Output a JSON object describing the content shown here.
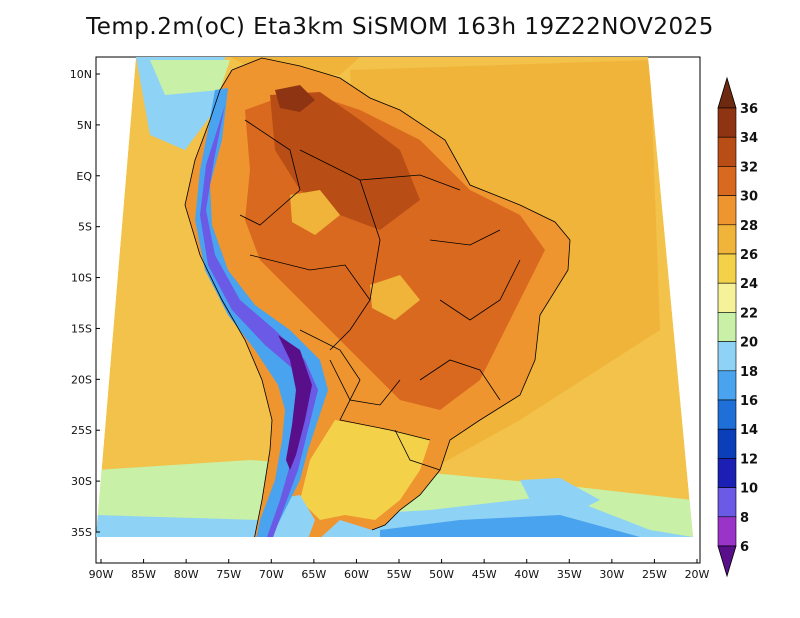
{
  "title": "Temp.2m(oC) Eta3km SiSMOM 163h 19Z22NOV2025",
  "lat_labels": [
    "10N",
    "5N",
    "EQ",
    "5S",
    "10S",
    "15S",
    "20S",
    "25S",
    "30S",
    "35S"
  ],
  "lat_values": [
    10,
    5,
    0,
    -5,
    -10,
    -15,
    -20,
    -25,
    -30,
    -35
  ],
  "lon_labels": [
    "90W",
    "85W",
    "80W",
    "75W",
    "70W",
    "65W",
    "60W",
    "55W",
    "50W",
    "45W",
    "40W",
    "35W",
    "30W",
    "25W",
    "20W"
  ],
  "lon_values": [
    -90,
    -85,
    -80,
    -75,
    -70,
    -65,
    -60,
    -55,
    -50,
    -45,
    -40,
    -35,
    -30,
    -25,
    -20
  ],
  "colorbar": {
    "labels": [
      "6",
      "8",
      "10",
      "12",
      "14",
      "16",
      "18",
      "20",
      "22",
      "24",
      "26",
      "28",
      "30",
      "32",
      "34",
      "36"
    ],
    "colors": [
      "#5a0f8a",
      "#9a33c8",
      "#6a5ae6",
      "#1b1fb4",
      "#0a3fb9",
      "#1f6fd8",
      "#4aa3ee",
      "#8ed2f5",
      "#c8f0a6",
      "#f6f29a",
      "#f3d24a",
      "#f0b43a",
      "#ee9530",
      "#d9691f",
      "#b94d16",
      "#8f3412",
      "#6e2a10"
    ],
    "units": "oC"
  }
}
